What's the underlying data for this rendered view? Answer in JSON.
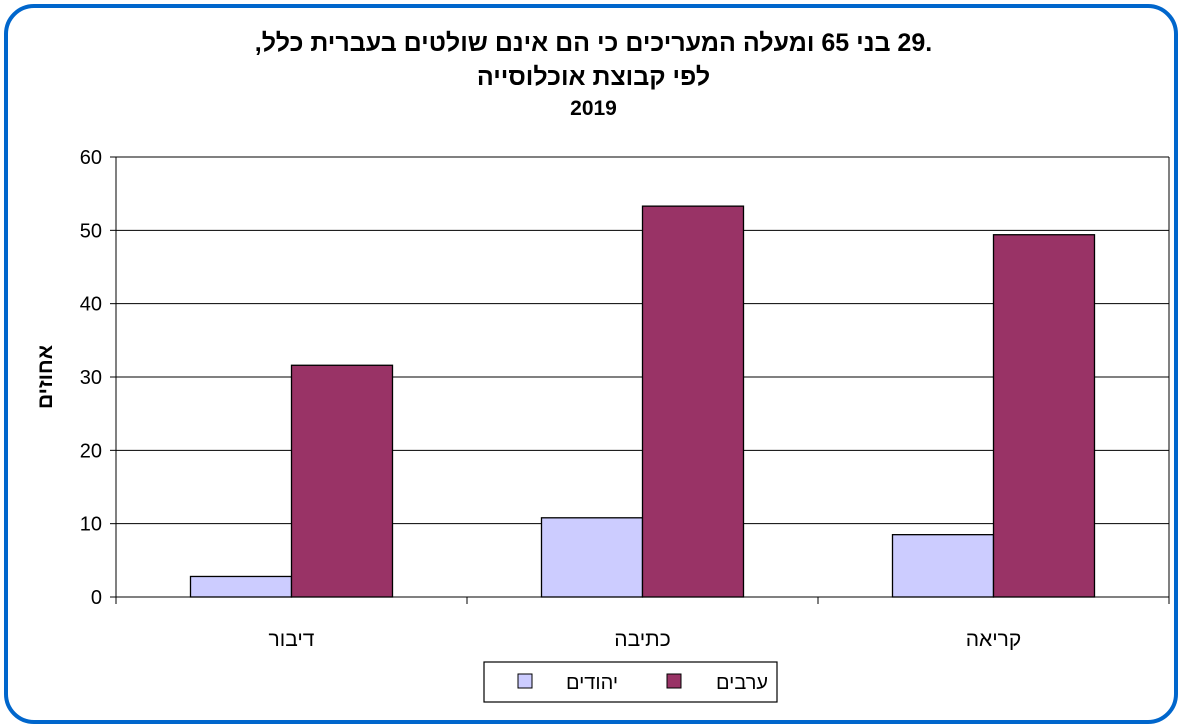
{
  "chart_data": {
    "type": "bar",
    "title": ".29 בני 65 ומעלה המעריכים כי הם אינם שולטים בעברית כלל,",
    "subtitle": "לפי קבוצת אוכלוסייה",
    "year": "2019",
    "ylabel": "אחוזים",
    "xlabel": "",
    "ylim": [
      0,
      60
    ],
    "yticks": [
      0,
      10,
      20,
      30,
      40,
      50,
      60
    ],
    "categories": [
      "דיבור",
      "כתיבה",
      "קריאה"
    ],
    "series": [
      {
        "name": "יהודים",
        "values": [
          2.8,
          10.8,
          8.5
        ],
        "color": "#CCCCFF"
      },
      {
        "name": "ערבים",
        "values": [
          31.6,
          53.3,
          49.4
        ],
        "color": "#993366"
      }
    ],
    "grid": true,
    "legend_position": "bottom",
    "frame_color": "#0066CC"
  }
}
